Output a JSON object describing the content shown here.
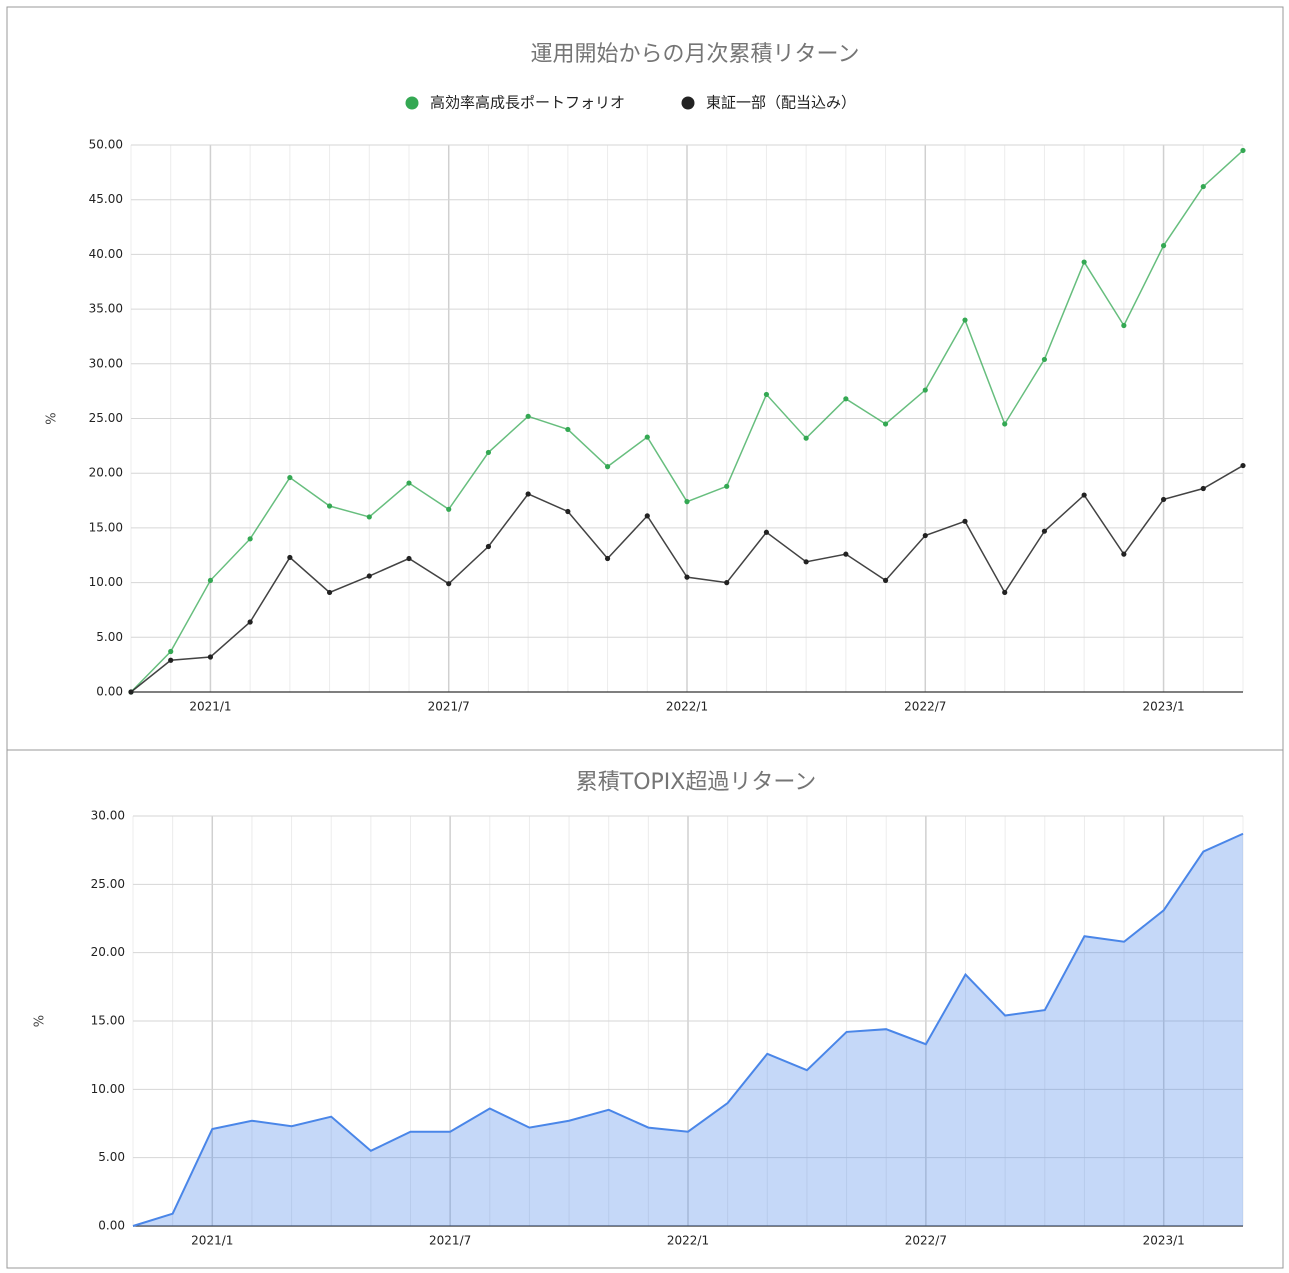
{
  "chart_data": [
    {
      "type": "line",
      "title": "運用開始からの月次累積リターン",
      "y_label": "%",
      "categories": [
        null,
        null,
        "2021/1",
        null,
        null,
        null,
        null,
        null,
        "2021/7",
        null,
        null,
        null,
        null,
        null,
        "2022/1",
        null,
        null,
        null,
        null,
        null,
        "2022/7",
        null,
        null,
        null,
        null,
        null,
        "2023/1",
        null,
        null
      ],
      "series": [
        {
          "name": "高効率高成長ポートフォリオ",
          "color": "#34a853",
          "values": [
            0,
            3.7,
            10.2,
            14.0,
            19.6,
            17.0,
            16.0,
            19.1,
            16.7,
            21.9,
            25.2,
            24.0,
            20.6,
            23.3,
            17.4,
            18.8,
            27.2,
            23.2,
            26.8,
            24.5,
            27.6,
            34.0,
            24.5,
            30.4,
            39.3,
            33.5,
            40.8,
            46.2,
            49.5
          ]
        },
        {
          "name": "東証一部（配当込み）",
          "color": "#222222",
          "values": [
            0,
            2.9,
            3.2,
            6.4,
            12.3,
            9.1,
            10.6,
            12.2,
            9.9,
            13.3,
            18.1,
            16.5,
            12.2,
            16.1,
            10.5,
            10.0,
            14.6,
            11.9,
            12.6,
            10.2,
            14.3,
            15.6,
            9.1,
            14.7,
            18.0,
            12.6,
            17.6,
            18.6,
            20.7
          ]
        }
      ],
      "ylim": [
        0,
        50
      ],
      "yticks": [
        {
          "value": 0,
          "label": "0.00"
        },
        {
          "value": 5,
          "label": "5.00"
        },
        {
          "value": 10,
          "label": "10.00"
        },
        {
          "value": 15,
          "label": "15.00"
        },
        {
          "value": 20,
          "label": "20.00"
        },
        {
          "value": 25,
          "label": "25.00"
        },
        {
          "value": 30,
          "label": "30.00"
        },
        {
          "value": 35,
          "label": "35.00"
        },
        {
          "value": 40,
          "label": "40.00"
        },
        {
          "value": 45,
          "label": "45.00"
        },
        {
          "value": 50,
          "label": "50.00"
        }
      ],
      "grid": true,
      "markers": true,
      "legend": "top"
    },
    {
      "type": "area",
      "title": "累積TOPIX超過リターン",
      "y_label": "%",
      "categories": [
        null,
        null,
        "2021/1",
        null,
        null,
        null,
        null,
        null,
        "2021/7",
        null,
        null,
        null,
        null,
        null,
        "2022/1",
        null,
        null,
        null,
        null,
        null,
        "2022/7",
        null,
        null,
        null,
        null,
        null,
        "2023/1",
        null,
        null
      ],
      "values": [
        0,
        0.9,
        7.1,
        7.7,
        7.3,
        8.0,
        5.5,
        6.9,
        6.9,
        8.6,
        7.2,
        7.7,
        8.5,
        7.2,
        6.9,
        9.0,
        12.6,
        11.4,
        14.2,
        14.4,
        13.3,
        18.4,
        15.4,
        15.8,
        21.2,
        20.8,
        23.1,
        27.4,
        28.7
      ],
      "color": "#4a86e8",
      "ylim": [
        0,
        30
      ],
      "yticks": [
        {
          "value": 0,
          "label": "0.00"
        },
        {
          "value": 5,
          "label": "5.00"
        },
        {
          "value": 10,
          "label": "10.00"
        },
        {
          "value": 15,
          "label": "15.00"
        },
        {
          "value": 20,
          "label": "20.00"
        },
        {
          "value": 25,
          "label": "25.00"
        },
        {
          "value": 30,
          "label": "30.00"
        }
      ],
      "grid": true
    }
  ]
}
